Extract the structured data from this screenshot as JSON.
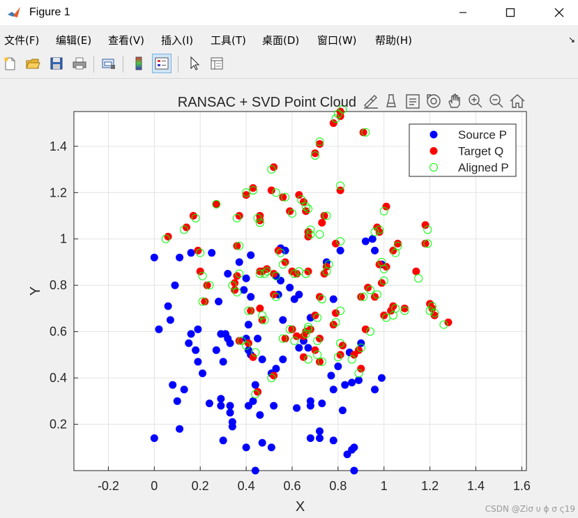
{
  "window": {
    "title": "Figure 1"
  },
  "menu": [
    "文件(F)",
    "编辑(E)",
    "查看(V)",
    "插入(I)",
    "工具(T)",
    "桌面(D)",
    "窗口(W)",
    "帮助(H)"
  ],
  "toolbar_icons": [
    "new-figure-icon",
    "open-file-icon",
    "save-icon",
    "print-icon",
    "print-preview-icon",
    "colorbar-icon",
    "legend-icon",
    "edit-plot-icon",
    "property-inspector-icon"
  ],
  "axes_toolbar_icons": [
    "brush-icon",
    "data-tips-icon",
    "restore-view-icon",
    "rotate-icon",
    "pan-icon",
    "zoom-in-icon",
    "zoom-out-icon",
    "home-icon"
  ],
  "watermark": "CSDN @Ziσ υ ϕ σ ς19",
  "chart_data": {
    "type": "scatter",
    "title": "RANSAC + SVD Point Cloud",
    "xlabel": "X",
    "ylabel": "Y",
    "xlim": [
      -0.35,
      1.62
    ],
    "ylim": [
      0.0,
      1.55
    ],
    "xticks": [
      -0.2,
      0,
      0.2,
      0.4,
      0.6,
      0.8,
      1,
      1.2,
      1.4,
      1.6
    ],
    "yticks": [
      0.2,
      0.4,
      0.6,
      0.8,
      1,
      1.2,
      1.4
    ],
    "grid": true,
    "legend_position": "top-right",
    "series": [
      {
        "name": "Source P",
        "color": "#0000ff",
        "marker": "filled-circle",
        "points": [
          [
            0.0,
            0.92
          ],
          [
            0.02,
            0.61
          ],
          [
            0.06,
            0.71
          ],
          [
            0.07,
            0.65
          ],
          [
            0.09,
            0.8
          ],
          [
            0.11,
            0.92
          ],
          [
            0.16,
            0.94
          ],
          [
            0.25,
            0.94
          ],
          [
            0.32,
            0.85
          ],
          [
            0.37,
            0.9
          ],
          [
            0.42,
            0.93
          ],
          [
            0.4,
            0.83
          ],
          [
            0.39,
            0.78
          ],
          [
            0.42,
            0.75
          ],
          [
            0.28,
            0.73
          ],
          [
            0.16,
            0.59
          ],
          [
            0.19,
            0.61
          ],
          [
            0.15,
            0.55
          ],
          [
            0.18,
            0.52
          ],
          [
            0.19,
            0.47
          ],
          [
            0.21,
            0.42
          ],
          [
            0.29,
            0.59
          ],
          [
            0.31,
            0.59
          ],
          [
            0.32,
            0.57
          ],
          [
            0.33,
            0.55
          ],
          [
            0.27,
            0.52
          ],
          [
            0.3,
            0.47
          ],
          [
            0.4,
            0.57
          ],
          [
            0.41,
            0.52
          ],
          [
            0.42,
            0.5
          ],
          [
            0.45,
            0.57
          ],
          [
            0.47,
            0.48
          ],
          [
            0.41,
            0.63
          ],
          [
            0.08,
            0.37
          ],
          [
            0.13,
            0.35
          ],
          [
            0.1,
            0.3
          ],
          [
            0.24,
            0.29
          ],
          [
            0.29,
            0.31
          ],
          [
            0.29,
            0.28
          ],
          [
            0.33,
            0.28
          ],
          [
            0.33,
            0.25
          ],
          [
            0.34,
            0.21
          ],
          [
            0.34,
            0.19
          ],
          [
            0.41,
            0.28
          ],
          [
            0.43,
            0.3
          ],
          [
            0.46,
            0.24
          ],
          [
            0.45,
            0.34
          ],
          [
            0.44,
            0.37
          ],
          [
            0.52,
            0.28
          ],
          [
            0.53,
            0.44
          ],
          [
            0.51,
            0.42
          ],
          [
            0.56,
            0.48
          ],
          [
            0.56,
            0.65
          ],
          [
            0.6,
            0.61
          ],
          [
            0.61,
            0.74
          ],
          [
            0.63,
            0.76
          ],
          [
            0.63,
            0.53
          ],
          [
            0.65,
            0.56
          ],
          [
            0.67,
            0.53
          ],
          [
            0.62,
            0.27
          ],
          [
            0.68,
            0.28
          ],
          [
            0.68,
            0.3
          ],
          [
            0.73,
            0.29
          ],
          [
            0.72,
            0.14
          ],
          [
            0.72,
            0.17
          ],
          [
            0.68,
            0.14
          ],
          [
            0.78,
            0.13
          ],
          [
            0.8,
            0.45
          ],
          [
            0.77,
            0.41
          ],
          [
            0.78,
            0.35
          ],
          [
            0.82,
            0.26
          ],
          [
            0.83,
            0.37
          ],
          [
            0.86,
            0.38
          ],
          [
            0.85,
            0.51
          ],
          [
            0.89,
            0.39
          ],
          [
            0.9,
            0.55
          ],
          [
            0.84,
            0.07
          ],
          [
            0.86,
            0.09
          ],
          [
            0.87,
            0.1
          ],
          [
            0.96,
            0.35
          ],
          [
            0.99,
            0.4
          ],
          [
            0.99,
            0.89
          ],
          [
            0.96,
            0.95
          ],
          [
            0.95,
            1.0
          ],
          [
            0.92,
            0.99
          ],
          [
            0.81,
            0.95
          ],
          [
            0.75,
            0.9
          ],
          [
            0.78,
            0.74
          ],
          [
            0.68,
            0.66
          ],
          [
            0.59,
            0.79
          ],
          [
            0.55,
            0.82
          ],
          [
            0.53,
            0.84
          ],
          [
            0.54,
            0.76
          ],
          [
            0.57,
            0.95
          ],
          [
            0.55,
            0.96
          ],
          [
            0.0,
            0.14
          ],
          [
            0.11,
            0.18
          ],
          [
            0.3,
            0.13
          ],
          [
            0.4,
            0.1
          ],
          [
            0.47,
            0.12
          ],
          [
            0.51,
            0.1
          ],
          [
            0.44,
            0.0
          ],
          [
            0.87,
            0.0
          ]
        ]
      },
      {
        "name": "Target Q",
        "color": "#ff0000",
        "marker": "filled-circle",
        "points": [
          [
            0.06,
            1.01
          ],
          [
            0.14,
            1.05
          ],
          [
            0.17,
            1.1
          ],
          [
            0.27,
            1.15
          ],
          [
            0.37,
            1.1
          ],
          [
            0.36,
            0.97
          ],
          [
            0.43,
            1.22
          ],
          [
            0.4,
            1.19
          ],
          [
            0.46,
            1.1
          ],
          [
            0.46,
            1.08
          ],
          [
            0.52,
            1.31
          ],
          [
            0.51,
            1.21
          ],
          [
            0.56,
            1.18
          ],
          [
            0.59,
            1.12
          ],
          [
            0.63,
            1.19
          ],
          [
            0.65,
            1.16
          ],
          [
            0.66,
            1.12
          ],
          [
            0.7,
            1.37
          ],
          [
            0.72,
            1.41
          ],
          [
            0.78,
            1.5
          ],
          [
            0.81,
            1.55
          ],
          [
            0.81,
            1.53
          ],
          [
            0.91,
            1.46
          ],
          [
            0.81,
            1.21
          ],
          [
            0.74,
            1.1
          ],
          [
            0.73,
            1.07
          ],
          [
            0.67,
            1.03
          ],
          [
            0.67,
            1.01
          ],
          [
            0.79,
            0.98
          ],
          [
            0.54,
            0.95
          ],
          [
            0.57,
            0.9
          ],
          [
            0.47,
            0.86
          ],
          [
            0.49,
            0.87
          ],
          [
            0.46,
            0.86
          ],
          [
            0.52,
            0.85
          ],
          [
            0.36,
            0.84
          ],
          [
            0.35,
            0.81
          ],
          [
            0.35,
            0.78
          ],
          [
            0.2,
            0.86
          ],
          [
            0.19,
            0.95
          ],
          [
            0.23,
            0.8
          ],
          [
            0.22,
            0.73
          ],
          [
            0.42,
            0.69
          ],
          [
            0.46,
            0.7
          ],
          [
            0.47,
            0.65
          ],
          [
            0.52,
            0.76
          ],
          [
            0.6,
            0.86
          ],
          [
            0.62,
            0.85
          ],
          [
            0.67,
            0.86
          ],
          [
            0.74,
            0.85
          ],
          [
            0.75,
            0.88
          ],
          [
            0.79,
            0.68
          ],
          [
            0.72,
            0.75
          ],
          [
            0.78,
            0.63
          ],
          [
            0.68,
            0.61
          ],
          [
            0.7,
            0.67
          ],
          [
            0.66,
            0.6
          ],
          [
            0.6,
            0.61
          ],
          [
            0.57,
            0.57
          ],
          [
            0.62,
            0.58
          ],
          [
            0.65,
            0.58
          ],
          [
            0.7,
            0.52
          ],
          [
            0.72,
            0.57
          ],
          [
            0.72,
            0.47
          ],
          [
            0.65,
            0.49
          ],
          [
            0.43,
            0.49
          ],
          [
            0.37,
            0.56
          ],
          [
            0.41,
            0.55
          ],
          [
            0.45,
            0.34
          ],
          [
            0.52,
            0.41
          ],
          [
            0.82,
            0.54
          ],
          [
            0.81,
            0.5
          ],
          [
            0.87,
            0.5
          ],
          [
            0.89,
            0.52
          ],
          [
            0.9,
            0.44
          ],
          [
            0.9,
            0.75
          ],
          [
            0.93,
            0.79
          ],
          [
            0.96,
            0.75
          ],
          [
            0.99,
            0.81
          ],
          [
            0.98,
            0.89
          ],
          [
            1.01,
            0.88
          ],
          [
            1.0,
            0.67
          ],
          [
            1.03,
            0.69
          ],
          [
            1.04,
            0.71
          ],
          [
            1.09,
            0.7
          ],
          [
            0.92,
            0.61
          ],
          [
            0.98,
            1.03
          ],
          [
            0.97,
            1.05
          ],
          [
            1.04,
            0.95
          ],
          [
            1.01,
            1.14
          ],
          [
            1.06,
            0.98
          ],
          [
            1.18,
            0.98
          ],
          [
            1.18,
            1.06
          ],
          [
            1.14,
            0.86
          ],
          [
            1.2,
            0.72
          ],
          [
            1.21,
            0.7
          ],
          [
            1.22,
            0.67
          ],
          [
            1.28,
            0.64
          ]
        ]
      },
      {
        "name": "Aligned P",
        "color": "#00ff00",
        "marker": "open-circle",
        "points": [
          [
            0.05,
            1.0
          ],
          [
            0.13,
            1.04
          ],
          [
            0.18,
            1.09
          ],
          [
            0.27,
            1.15
          ],
          [
            0.36,
            1.09
          ],
          [
            0.37,
            0.97
          ],
          [
            0.43,
            1.21
          ],
          [
            0.4,
            1.2
          ],
          [
            0.46,
            1.07
          ],
          [
            0.45,
            1.09
          ],
          [
            0.51,
            1.3
          ],
          [
            0.53,
            1.2
          ],
          [
            0.57,
            1.18
          ],
          [
            0.6,
            1.11
          ],
          [
            0.64,
            1.17
          ],
          [
            0.66,
            1.14
          ],
          [
            0.67,
            1.13
          ],
          [
            0.7,
            1.36
          ],
          [
            0.72,
            1.42
          ],
          [
            0.79,
            1.52
          ],
          [
            0.82,
            1.56
          ],
          [
            0.8,
            1.54
          ],
          [
            0.92,
            1.46
          ],
          [
            0.81,
            1.23
          ],
          [
            0.75,
            1.1
          ],
          [
            0.72,
            1.02
          ],
          [
            0.68,
            1.04
          ],
          [
            0.68,
            1.02
          ],
          [
            0.81,
            0.99
          ],
          [
            0.55,
            0.94
          ],
          [
            0.56,
            0.89
          ],
          [
            0.48,
            0.85
          ],
          [
            0.49,
            0.86
          ],
          [
            0.46,
            0.85
          ],
          [
            0.53,
            0.84
          ],
          [
            0.37,
            0.85
          ],
          [
            0.34,
            0.8
          ],
          [
            0.36,
            0.77
          ],
          [
            0.21,
            0.84
          ],
          [
            0.2,
            0.94
          ],
          [
            0.24,
            0.8
          ],
          [
            0.21,
            0.73
          ],
          [
            0.41,
            0.69
          ],
          [
            0.47,
            0.67
          ],
          [
            0.48,
            0.65
          ],
          [
            0.53,
            0.75
          ],
          [
            0.61,
            0.85
          ],
          [
            0.63,
            0.86
          ],
          [
            0.66,
            0.85
          ],
          [
            0.75,
            0.86
          ],
          [
            0.76,
            0.89
          ],
          [
            0.81,
            0.69
          ],
          [
            0.73,
            0.74
          ],
          [
            0.79,
            0.64
          ],
          [
            0.67,
            0.62
          ],
          [
            0.71,
            0.66
          ],
          [
            0.67,
            0.61
          ],
          [
            0.59,
            0.61
          ],
          [
            0.56,
            0.57
          ],
          [
            0.61,
            0.56
          ],
          [
            0.66,
            0.59
          ],
          [
            0.71,
            0.5
          ],
          [
            0.71,
            0.56
          ],
          [
            0.73,
            0.47
          ],
          [
            0.67,
            0.48
          ],
          [
            0.44,
            0.51
          ],
          [
            0.38,
            0.56
          ],
          [
            0.4,
            0.54
          ],
          [
            0.44,
            0.33
          ],
          [
            0.51,
            0.4
          ],
          [
            0.81,
            0.55
          ],
          [
            0.8,
            0.49
          ],
          [
            0.86,
            0.48
          ],
          [
            0.9,
            0.53
          ],
          [
            0.89,
            0.42
          ],
          [
            0.91,
            0.75
          ],
          [
            0.94,
            0.78
          ],
          [
            0.97,
            0.76
          ],
          [
            1.0,
            0.82
          ],
          [
            0.99,
            0.9
          ],
          [
            1.0,
            0.87
          ],
          [
            1.01,
            0.66
          ],
          [
            1.04,
            0.67
          ],
          [
            1.05,
            0.7
          ],
          [
            1.09,
            0.69
          ],
          [
            0.94,
            0.6
          ],
          [
            0.96,
            1.03
          ],
          [
            0.98,
            1.04
          ],
          [
            1.05,
            0.94
          ],
          [
            1.0,
            1.12
          ],
          [
            1.06,
            0.97
          ],
          [
            1.19,
            0.98
          ],
          [
            1.19,
            1.04
          ],
          [
            1.15,
            0.83
          ],
          [
            1.21,
            0.71
          ],
          [
            1.2,
            0.69
          ],
          [
            1.22,
            0.68
          ],
          [
            1.26,
            0.63
          ]
        ]
      }
    ]
  }
}
